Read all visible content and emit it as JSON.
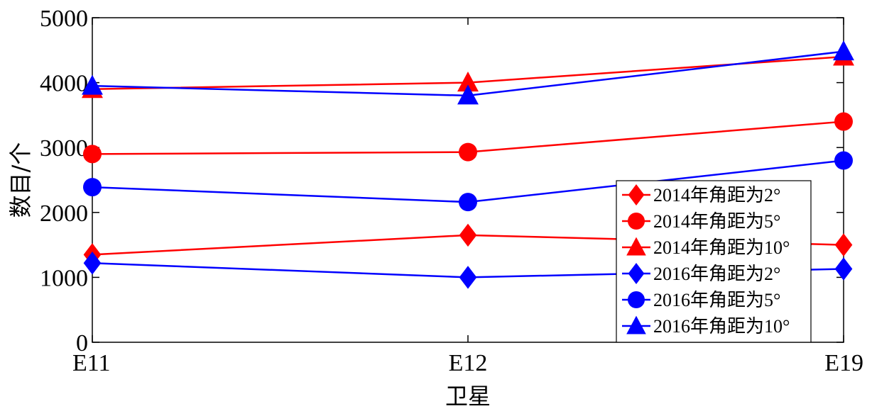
{
  "chart_data": {
    "type": "line",
    "categories": [
      "E11",
      "E12",
      "E19"
    ],
    "xlabel": "卫星",
    "ylabel": "数目/个",
    "ylim": [
      0,
      5000
    ],
    "yticks": [
      0,
      1000,
      2000,
      3000,
      4000,
      5000
    ],
    "grid": false,
    "legend_position": "bottom-right",
    "series": [
      {
        "name": "2014年角距为2°",
        "color": "#ff0000",
        "marker": "diamond",
        "values": [
          1350,
          1650,
          1500
        ]
      },
      {
        "name": "2014年角距为5°",
        "color": "#ff0000",
        "marker": "circle",
        "values": [
          2900,
          2930,
          3400
        ]
      },
      {
        "name": "2014年角距为10°",
        "color": "#ff0000",
        "marker": "triangle",
        "values": [
          3900,
          4000,
          4400
        ]
      },
      {
        "name": "2016年角距为2°",
        "color": "#0000ff",
        "marker": "diamond",
        "values": [
          1220,
          1000,
          1130
        ]
      },
      {
        "name": "2016年角距为5°",
        "color": "#0000ff",
        "marker": "circle",
        "values": [
          2390,
          2160,
          2800
        ]
      },
      {
        "name": "2016年角距为10°",
        "color": "#0000ff",
        "marker": "triangle",
        "values": [
          3950,
          3800,
          4480
        ]
      }
    ]
  }
}
